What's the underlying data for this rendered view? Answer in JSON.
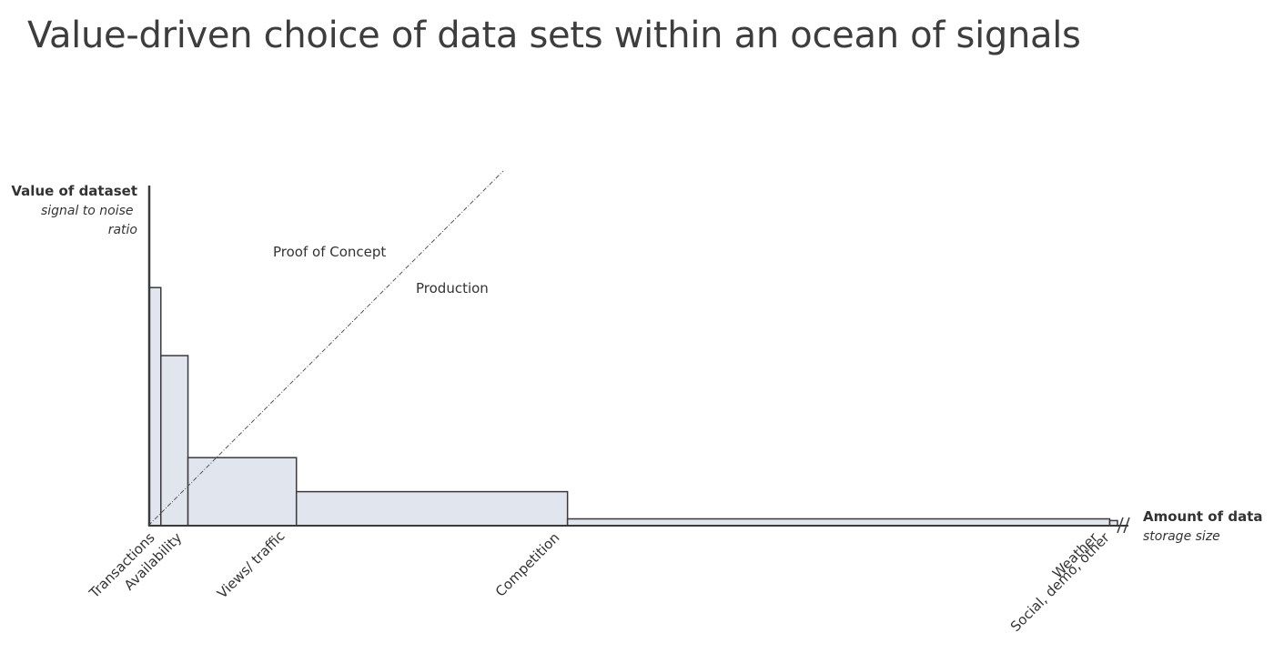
{
  "chart_data": {
    "type": "bar",
    "title": "Value-driven choice of data sets within an ocean of signals",
    "y_axis": {
      "label": "Value of dataset",
      "sublabel": "signal to noise ratio"
    },
    "x_axis": {
      "label": "Amount of data",
      "sublabel": "storage size",
      "break_marker": true
    },
    "categories": [
      "Transactions",
      "Availability",
      "Views/ traffic",
      "Competition",
      "Weather",
      "Social, demo, other"
    ],
    "values": [
      0.7,
      0.5,
      0.2,
      0.1,
      0.02,
      0.015
    ],
    "widths": [
      0.012,
      0.028,
      0.112,
      0.28,
      0.56,
      0.008
    ],
    "ylim": [
      0,
      1
    ],
    "bar_fill": "#e1e6ee",
    "bar_stroke": "#3a3a3a",
    "annotations": [
      {
        "text": "Proof of Concept"
      },
      {
        "text": "Production"
      }
    ],
    "divider_line": {
      "style": "dash-dot",
      "color": "#555555"
    }
  }
}
